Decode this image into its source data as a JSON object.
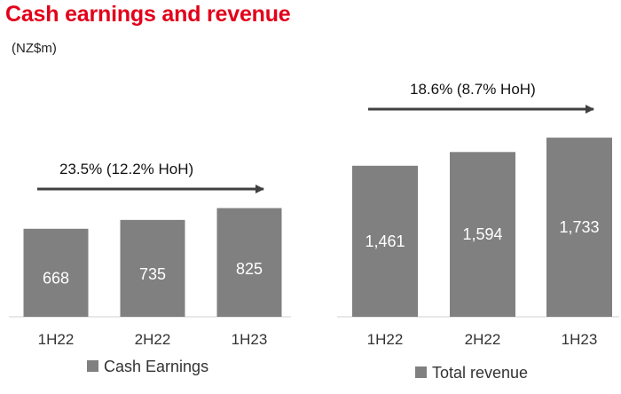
{
  "header": {
    "title": "Cash earnings and revenue",
    "unit": "(NZ$m)"
  },
  "colors": {
    "title": "#e2001a",
    "bar": "#808080",
    "arrow": "#404040"
  },
  "chart_data": [
    {
      "type": "bar",
      "categories": [
        "1H22",
        "2H22",
        "1H23"
      ],
      "series": [
        {
          "name": "Cash Earnings",
          "values": [
            668,
            735,
            825
          ]
        }
      ],
      "value_labels": [
        "668",
        "735",
        "825"
      ],
      "annotation": "23.5%  (12.2% HoH)",
      "legend": "Cash Earnings",
      "legend_position": "bottom-left"
    },
    {
      "type": "bar",
      "categories": [
        "1H22",
        "2H22",
        "1H23"
      ],
      "series": [
        {
          "name": "Total revenue",
          "values": [
            1461,
            1594,
            1733
          ]
        }
      ],
      "value_labels": [
        "1,461",
        "1,594",
        "1,733"
      ],
      "annotation": "18.6% (8.7% HoH)",
      "legend": "Total revenue",
      "legend_position": "bottom"
    }
  ]
}
